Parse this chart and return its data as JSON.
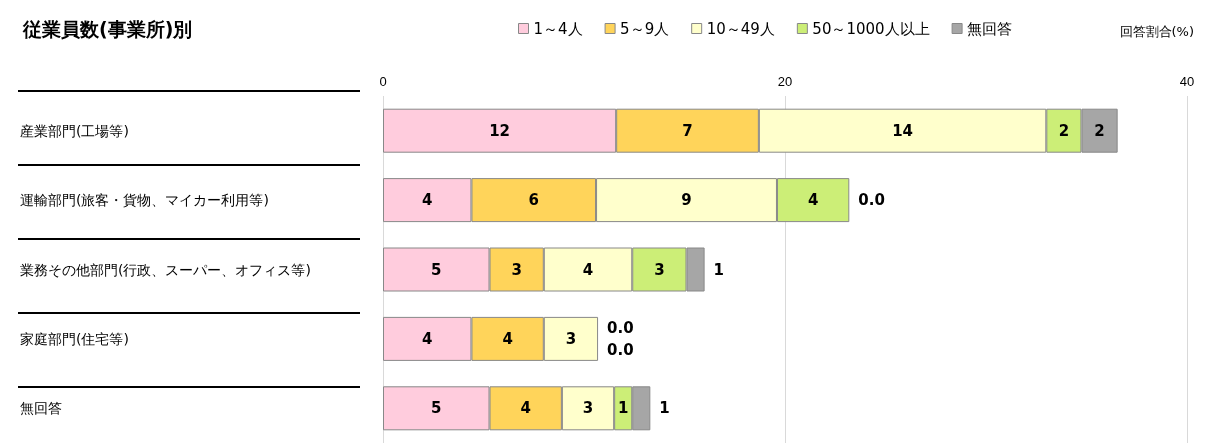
{
  "chart_data": {
    "type": "bar",
    "orientation": "horizontal",
    "stacked": true,
    "title": "従業員数(事業所)別",
    "xlabel": "回答割合(%)",
    "categories": [
      "産業部門(工場等)",
      "運輸部門(旅客・貨物、マイカー利用等)",
      "業務その他部門(行政、スーパー、オフィス等)",
      "家庭部門(住宅等)",
      "無回答"
    ],
    "series": [
      {
        "name": "1～4人",
        "color": "#ffccdd",
        "values": [
          11.6,
          4.4,
          5.3,
          4.4,
          5.3
        ],
        "value_labels": [
          "12",
          "4",
          "5",
          "4",
          "5"
        ]
      },
      {
        "name": "5～9人",
        "color": "#ffd45a",
        "values": [
          7.1,
          6.2,
          2.7,
          3.6,
          3.6
        ],
        "value_labels": [
          "7",
          "6",
          "3",
          "4",
          "4"
        ]
      },
      {
        "name": "10～49人",
        "color": "#ffffcc",
        "values": [
          14.3,
          9.0,
          4.4,
          2.7,
          2.6
        ],
        "value_labels": [
          "14",
          "9",
          "4",
          "3",
          "3"
        ]
      },
      {
        "name": "50～1000人以上",
        "color": "#ccee77",
        "values": [
          1.75,
          3.6,
          2.7,
          0,
          0.9
        ],
        "value_labels": [
          "2",
          "4",
          "3",
          "0.0",
          "1"
        ]
      },
      {
        "name": "無回答",
        "color": "#a6a6a6",
        "values": [
          1.8,
          0,
          0.9,
          0,
          0.9
        ],
        "value_labels": [
          "2",
          "0.0",
          "1",
          "0.0",
          "1"
        ]
      }
    ],
    "xlim": [
      0,
      40
    ],
    "xticks": [
      0,
      20,
      40
    ],
    "grid": "x",
    "legend": "top"
  }
}
